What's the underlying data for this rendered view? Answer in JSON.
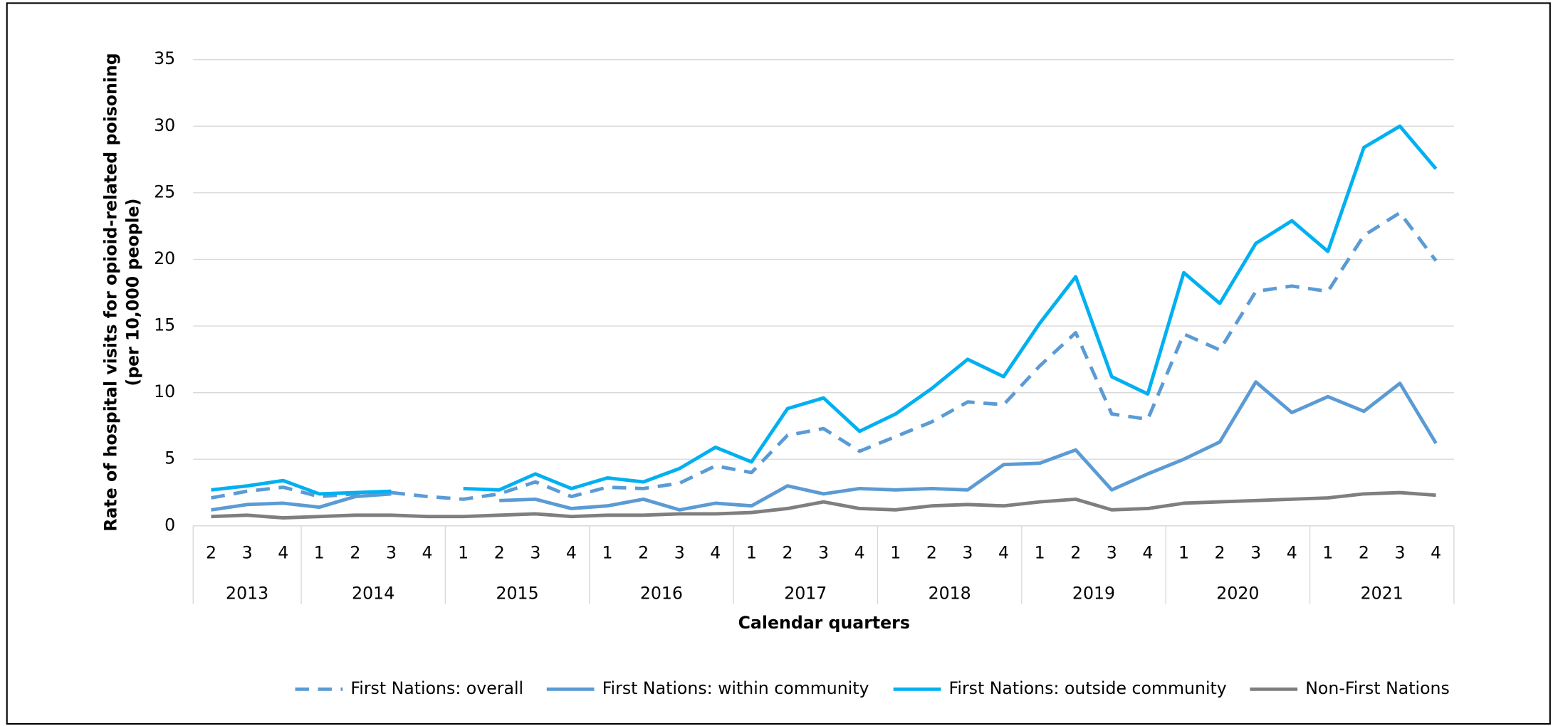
{
  "chart_data": {
    "type": "line",
    "ylabel": [
      "Rate of hospital visits for opioid-related poisoning",
      "(per 10,000 people)"
    ],
    "xlabel": "Calendar quarters",
    "groups": [
      {
        "label": "2013",
        "quarters": [
          "2",
          "3",
          "4"
        ]
      },
      {
        "label": "2014",
        "quarters": [
          "1",
          "2",
          "3",
          "4"
        ]
      },
      {
        "label": "2015",
        "quarters": [
          "1",
          "2",
          "3",
          "4"
        ]
      },
      {
        "label": "2016",
        "quarters": [
          "1",
          "2",
          "3",
          "4"
        ]
      },
      {
        "label": "2017",
        "quarters": [
          "1",
          "2",
          "3",
          "4"
        ]
      },
      {
        "label": "2018",
        "quarters": [
          "1",
          "2",
          "3",
          "4"
        ]
      },
      {
        "label": "2019",
        "quarters": [
          "1",
          "2",
          "3",
          "4"
        ]
      },
      {
        "label": "2020",
        "quarters": [
          "1",
          "2",
          "3",
          "4"
        ]
      },
      {
        "label": "2021",
        "quarters": [
          "1",
          "2",
          "3",
          "4"
        ]
      }
    ],
    "ylim": [
      0,
      35
    ],
    "yticks": [
      0,
      5,
      10,
      15,
      20,
      25,
      30,
      35
    ],
    "grid": true,
    "legend": "bottom",
    "series": [
      {
        "name": "First Nations: overall",
        "color": "#5b9bd5",
        "dashed": true,
        "values": [
          2.1,
          2.6,
          2.9,
          2.2,
          2.4,
          2.5,
          2.2,
          2.0,
          2.4,
          3.3,
          2.2,
          2.9,
          2.8,
          3.2,
          4.5,
          4.0,
          6.8,
          7.3,
          5.6,
          6.7,
          7.8,
          9.3,
          9.1,
          12.0,
          14.5,
          8.4,
          8.0,
          14.4,
          13.2,
          17.6,
          18.0,
          17.6,
          21.8,
          23.5,
          19.9
        ]
      },
      {
        "name": "First Nations: within community",
        "color": "#5b9bd5",
        "dashed": false,
        "values": [
          1.2,
          1.6,
          1.7,
          1.4,
          2.2,
          2.4,
          null,
          null,
          1.9,
          2.0,
          1.3,
          1.5,
          2.0,
          1.2,
          1.7,
          1.5,
          3.0,
          2.4,
          2.8,
          2.7,
          2.8,
          2.7,
          4.6,
          4.7,
          5.7,
          2.7,
          3.9,
          5.0,
          6.3,
          10.8,
          8.5,
          9.7,
          8.6,
          10.7,
          6.2
        ]
      },
      {
        "name": "First Nations: outside community",
        "color": "#00b0f0",
        "dashed": false,
        "values": [
          2.7,
          3.0,
          3.4,
          2.4,
          2.5,
          2.6,
          null,
          2.8,
          2.7,
          3.9,
          2.8,
          3.6,
          3.3,
          4.3,
          5.9,
          4.8,
          8.8,
          9.6,
          7.1,
          8.4,
          10.3,
          12.5,
          11.2,
          15.2,
          18.7,
          11.2,
          9.9,
          19.0,
          16.7,
          21.2,
          22.9,
          20.6,
          28.4,
          30.0,
          26.8
        ]
      },
      {
        "name": "Non-First Nations",
        "color": "#7f7f7f",
        "dashed": false,
        "values": [
          0.7,
          0.8,
          0.6,
          0.7,
          0.8,
          0.8,
          0.7,
          0.7,
          0.8,
          0.9,
          0.7,
          0.8,
          0.8,
          0.9,
          0.9,
          1.0,
          1.3,
          1.8,
          1.3,
          1.2,
          1.5,
          1.6,
          1.5,
          1.8,
          2.0,
          1.2,
          1.3,
          1.7,
          1.8,
          1.9,
          2.0,
          2.1,
          2.4,
          2.5,
          2.3
        ]
      }
    ]
  }
}
